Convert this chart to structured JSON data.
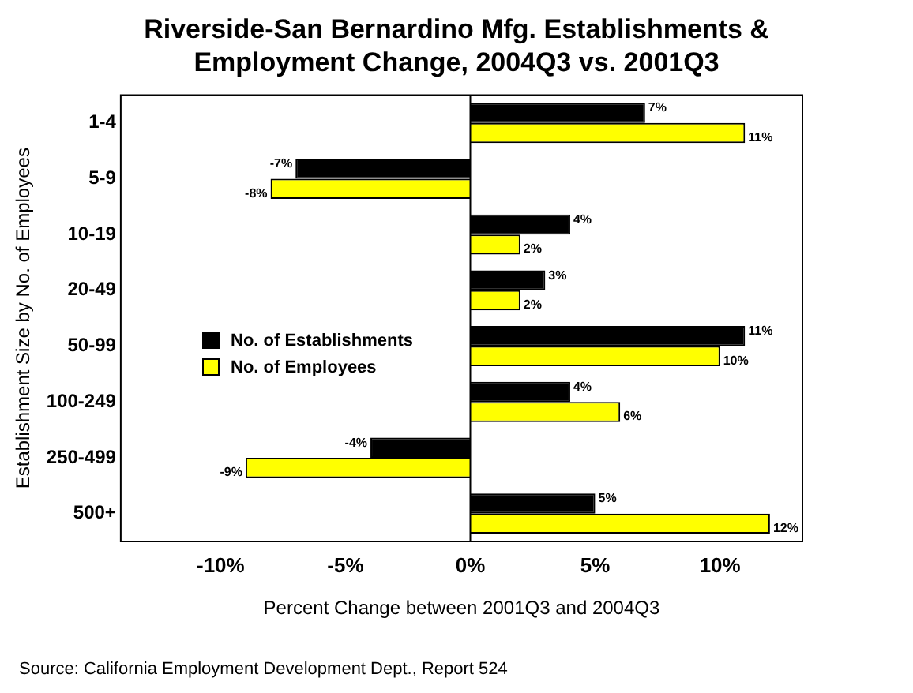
{
  "chart_data": {
    "type": "bar",
    "orientation": "horizontal",
    "title": "Riverside-San Bernardino Mfg.  Establishments &\nEmployment Change, 2004Q3 vs. 2001Q3",
    "xlabel": "Percent Change between 2001Q3 and 2004Q3",
    "ylabel": "Establishment Size by No. of Employees",
    "categories": [
      "1-4",
      "5-9",
      "10-19",
      "20-49",
      "50-99",
      "100-249",
      "250-499",
      "500+"
    ],
    "series": [
      {
        "name": "No. of Establishments",
        "color": "#000000",
        "values": [
          7,
          -7,
          4,
          3,
          11,
          4,
          -4,
          5
        ],
        "value_labels": [
          "7%",
          "-7%",
          "4%",
          "3%",
          "11%",
          "4%",
          "-4%",
          "5%"
        ]
      },
      {
        "name": "No. of Employees",
        "color": "#ffff00",
        "values": [
          11,
          -8,
          2,
          2,
          10,
          6,
          -9,
          12
        ],
        "value_labels": [
          "11%",
          "-8%",
          "2%",
          "2%",
          "10%",
          "6%",
          "-9%",
          "12%"
        ]
      }
    ],
    "xlim": [
      -14,
      13.3
    ],
    "ref_lines": [
      {
        "axis": "x",
        "value": 0,
        "color": "#000000"
      }
    ],
    "xticks": [
      {
        "value": -10,
        "label": "-10%"
      },
      {
        "value": -5,
        "label": "-5%"
      },
      {
        "value": 0,
        "label": "0%"
      },
      {
        "value": 5,
        "label": "5%"
      },
      {
        "value": 10,
        "label": "10%"
      }
    ],
    "grid": false,
    "legend": "left",
    "annotations": [
      "Source: California Employment Development Dept., Report 524"
    ]
  }
}
